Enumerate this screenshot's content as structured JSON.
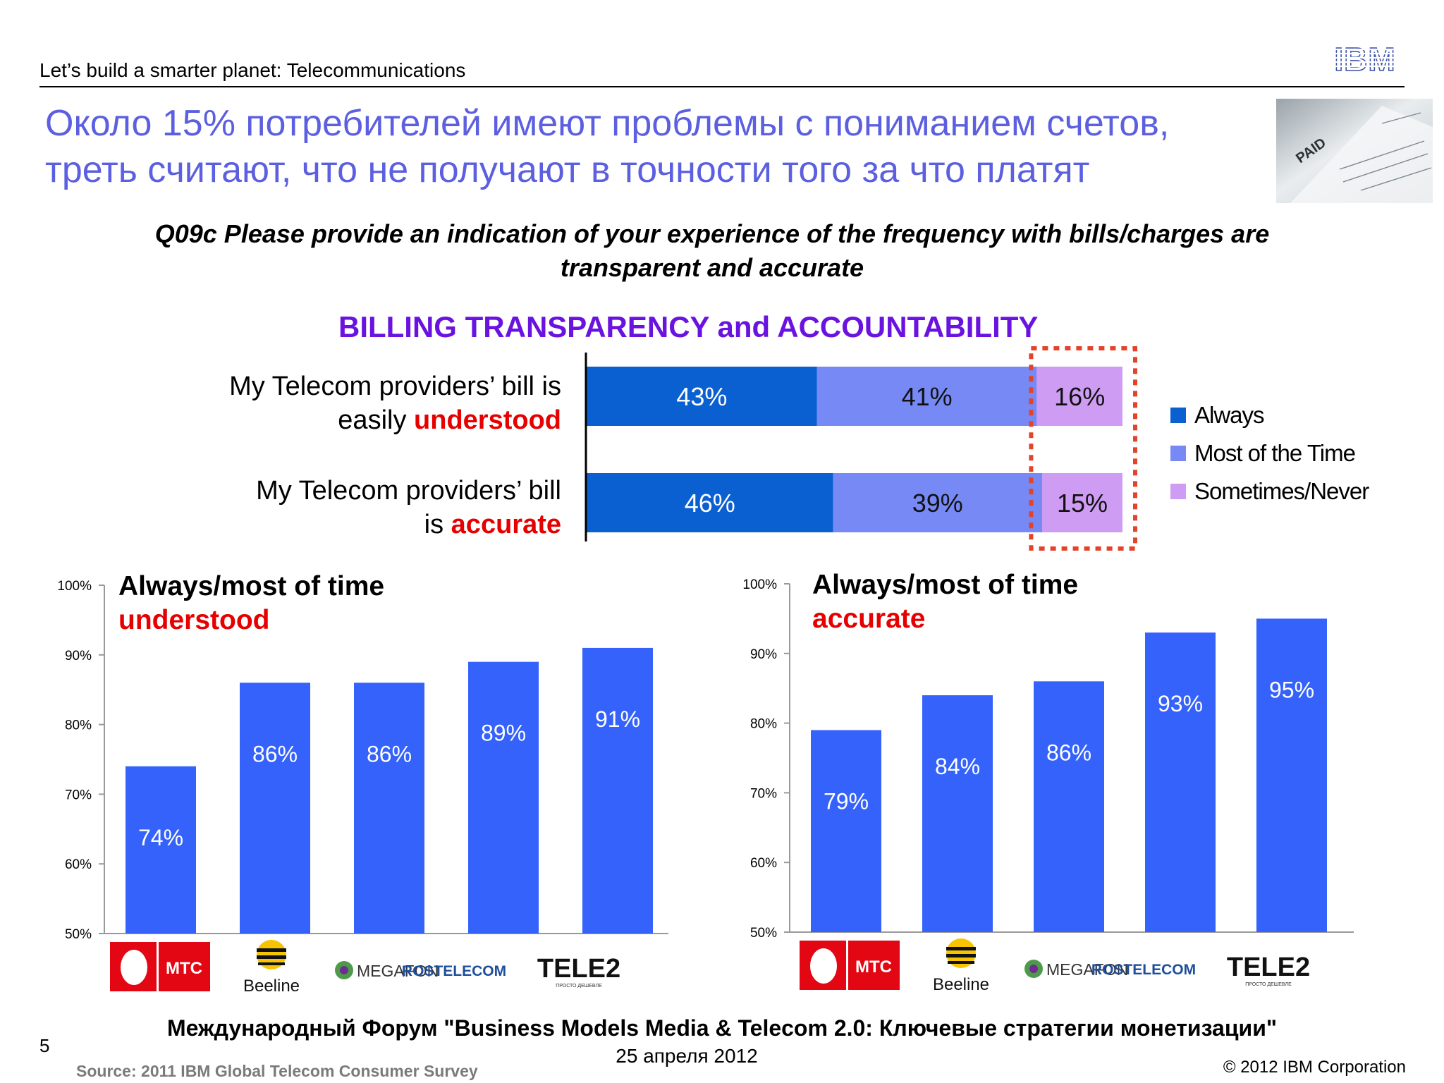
{
  "header": {
    "slide_tagline": "Let’s build a smarter planet: Telecommunications",
    "logo_text": "IBM"
  },
  "main_title": {
    "line1": "Около 15% потребителей имеют проблемы с пониманием счетов,",
    "line2": "треть считают, что не получают в точности того за что платят"
  },
  "photo": {
    "stamp_text": "PAID"
  },
  "question": {
    "line1": "Q09c Please provide an indication of your experience of the frequency with bills/charges are",
    "line2": "transparent and accurate"
  },
  "colors": {
    "always": "#0a5fd1",
    "most": "#7789f5",
    "sometimes": "#cf9cf3",
    "column_bar": "#3462fa",
    "highlight_box": "#e2432a",
    "title_purple": "#6a12e0",
    "emphasis_red": "#e60000"
  },
  "chart_data": [
    {
      "type": "bar",
      "orientation": "horizontal",
      "stacked": true,
      "title": "BILLING TRANSPARENCY and ACCOUNTABILITY",
      "categories": [
        {
          "lines": [
            "My Telecom providers’ bill is",
            "easily "
          ],
          "emphasis": "understood"
        },
        {
          "lines": [
            "My Telecom providers’ bill",
            "is "
          ],
          "emphasis": "accurate"
        }
      ],
      "series": [
        {
          "name": "Always",
          "values": [
            43,
            46
          ],
          "labels": [
            "43%",
            "46%"
          ]
        },
        {
          "name": "Most of the Time",
          "values": [
            41,
            39
          ],
          "labels": [
            "41%",
            "39%"
          ]
        },
        {
          "name": "Sometimes/Never",
          "values": [
            16,
            15
          ],
          "labels": [
            "16%",
            "15%"
          ]
        }
      ],
      "xlim": [
        0,
        100
      ],
      "legend": "right",
      "highlight": "Sometimes/Never"
    },
    {
      "type": "bar",
      "title_line1": "Always/most of time",
      "title_line2": "understood",
      "categories": [
        "MTC",
        "Beeline",
        "MEGAFON",
        "ROSTELECOM",
        "TELE2"
      ],
      "values": [
        74,
        86,
        86,
        89,
        91
      ],
      "labels": [
        "74%",
        "86%",
        "86%",
        "89%",
        "91%"
      ],
      "ylim": [
        50,
        100
      ],
      "yticks": [
        "50%",
        "60%",
        "70%",
        "80%",
        "90%",
        "100%"
      ]
    },
    {
      "type": "bar",
      "title_line1": "Always/most of time",
      "title_line2": "accurate",
      "categories": [
        "MTC",
        "Beeline",
        "MEGAFON",
        "ROSTELECOM",
        "TELE2"
      ],
      "values": [
        79,
        84,
        86,
        93,
        95
      ],
      "labels": [
        "79%",
        "84%",
        "86%",
        "93%",
        "95%"
      ],
      "ylim": [
        50,
        100
      ],
      "yticks": [
        "50%",
        "60%",
        "70%",
        "80%",
        "90%",
        "100%"
      ]
    }
  ],
  "logos": {
    "mts": "МТС",
    "beeline": "Beeline",
    "megafon": "MEGAFON",
    "rostelecom": "ROSTELECOM",
    "tele2": "TELE2",
    "tele2_slogan": "ПРОСТО ДЕШЕВЛЕ"
  },
  "footer": {
    "forum": "Международный Форум \"Business Models Media & Telecom 2.0: Ключевые стратегии монетизации\"",
    "date": "25 апреля 2012",
    "page_number": "5",
    "source": "Source: 2011 IBM Global Telecom Consumer Survey",
    "copyright": "© 2012 IBM Corporation"
  }
}
